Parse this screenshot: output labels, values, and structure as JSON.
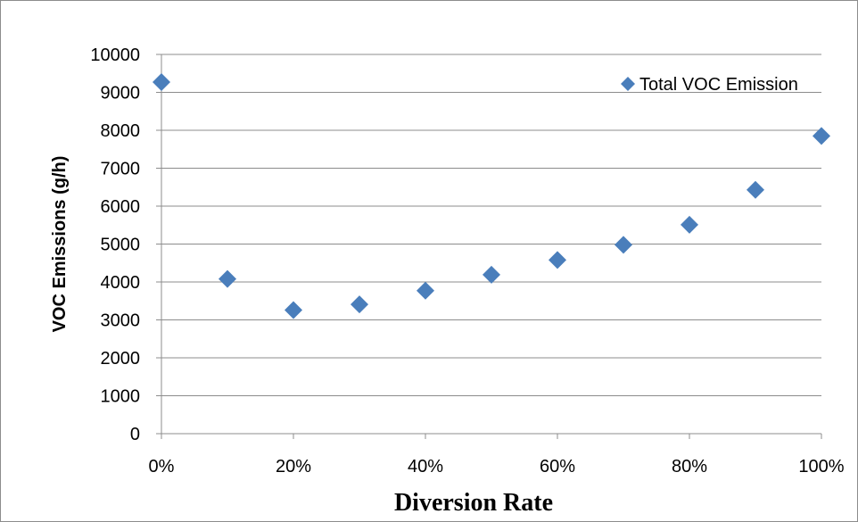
{
  "chart_data": {
    "type": "scatter",
    "title": "",
    "xlabel": "Diversion Rate",
    "ylabel": "VOC Emissions (g/h)",
    "x": [
      0,
      10,
      20,
      30,
      40,
      50,
      60,
      70,
      80,
      90,
      100
    ],
    "x_tick_values": [
      0,
      20,
      40,
      60,
      80,
      100
    ],
    "x_tick_labels": [
      "0%",
      "20%",
      "40%",
      "60%",
      "80%",
      "100%"
    ],
    "xlim": [
      0,
      100
    ],
    "ylim": [
      0,
      10000
    ],
    "y_tick_values": [
      0,
      1000,
      2000,
      3000,
      4000,
      5000,
      6000,
      7000,
      8000,
      9000,
      10000
    ],
    "y_tick_labels": [
      "0",
      "1000",
      "2000",
      "3000",
      "4000",
      "5000",
      "6000",
      "7000",
      "8000",
      "9000",
      "10000"
    ],
    "grid": "horizontal",
    "legend_position": "top-right",
    "series": [
      {
        "name": "Total VOC Emission",
        "marker": "diamond",
        "color": "#4a7ebb",
        "values": [
          9270,
          4080,
          3260,
          3410,
          3770,
          4190,
          4580,
          4980,
          5510,
          6430,
          7850
        ]
      }
    ]
  }
}
